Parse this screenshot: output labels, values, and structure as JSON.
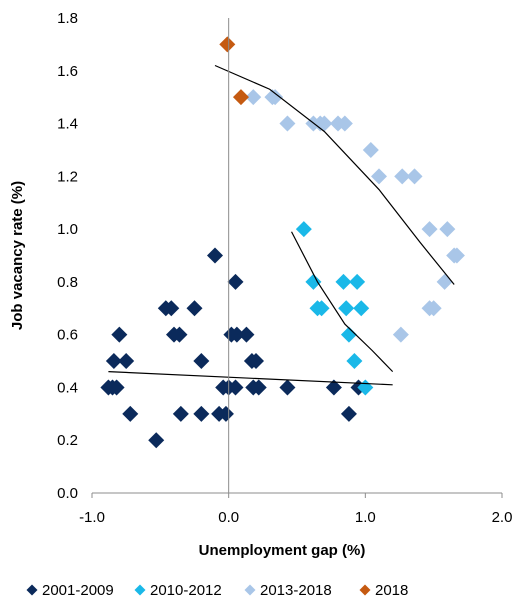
{
  "chart_data": {
    "type": "scatter",
    "xlabel": "Unemployment gap (%)",
    "ylabel": "Job vacancy rate (%)",
    "xlim": [
      -1.0,
      2.0
    ],
    "ylim": [
      0.0,
      1.8
    ],
    "x_ticks": [
      "-1.0",
      "0.0",
      "1.0",
      "2.0"
    ],
    "y_ticks": [
      "0.0",
      "0.2",
      "0.4",
      "0.6",
      "0.8",
      "1.0",
      "1.2",
      "1.4",
      "1.6",
      "1.8"
    ],
    "grid": false,
    "legend_position": "bottom",
    "marker": "diamond",
    "series": [
      {
        "name": "2001-2009",
        "color": "#0b2a5b",
        "points": [
          [
            -0.88,
            0.4
          ],
          [
            -0.85,
            0.4
          ],
          [
            -0.82,
            0.4
          ],
          [
            -0.84,
            0.5
          ],
          [
            -0.8,
            0.6
          ],
          [
            -0.75,
            0.5
          ],
          [
            -0.72,
            0.3
          ],
          [
            -0.53,
            0.2
          ],
          [
            -0.46,
            0.7
          ],
          [
            -0.42,
            0.7
          ],
          [
            -0.4,
            0.6
          ],
          [
            -0.36,
            0.6
          ],
          [
            -0.35,
            0.3
          ],
          [
            -0.25,
            0.7
          ],
          [
            -0.2,
            0.3
          ],
          [
            -0.2,
            0.5
          ],
          [
            -0.1,
            0.9
          ],
          [
            -0.07,
            0.3
          ],
          [
            -0.02,
            0.3
          ],
          [
            -0.04,
            0.4
          ],
          [
            0.0,
            0.4
          ],
          [
            0.02,
            0.6
          ],
          [
            0.05,
            0.8
          ],
          [
            0.06,
            0.6
          ],
          [
            0.05,
            0.4
          ],
          [
            0.13,
            0.6
          ],
          [
            0.17,
            0.5
          ],
          [
            0.2,
            0.5
          ],
          [
            0.18,
            0.4
          ],
          [
            0.22,
            0.4
          ],
          [
            0.43,
            0.4
          ],
          [
            0.77,
            0.4
          ],
          [
            0.88,
            0.3
          ],
          [
            0.95,
            0.4
          ]
        ]
      },
      {
        "name": "2010-2012",
        "color": "#1ab8e8",
        "points": [
          [
            0.55,
            1.0
          ],
          [
            0.62,
            0.8
          ],
          [
            0.65,
            0.7
          ],
          [
            0.68,
            0.7
          ],
          [
            0.84,
            0.8
          ],
          [
            0.86,
            0.7
          ],
          [
            0.88,
            0.6
          ],
          [
            0.92,
            0.5
          ],
          [
            0.94,
            0.8
          ],
          [
            0.97,
            0.7
          ],
          [
            1.0,
            0.4
          ]
        ]
      },
      {
        "name": "2013-2018",
        "color": "#a9c6e8",
        "points": [
          [
            0.18,
            1.5
          ],
          [
            0.32,
            1.5
          ],
          [
            0.34,
            1.5
          ],
          [
            0.43,
            1.4
          ],
          [
            0.62,
            1.4
          ],
          [
            0.67,
            1.4
          ],
          [
            0.7,
            1.4
          ],
          [
            0.8,
            1.4
          ],
          [
            0.85,
            1.4
          ],
          [
            1.04,
            1.3
          ],
          [
            1.1,
            1.2
          ],
          [
            1.27,
            1.2
          ],
          [
            1.36,
            1.2
          ],
          [
            1.26,
            0.6
          ],
          [
            1.47,
            1.0
          ],
          [
            1.47,
            0.7
          ],
          [
            1.5,
            0.7
          ],
          [
            1.58,
            0.8
          ],
          [
            1.6,
            1.0
          ],
          [
            1.65,
            0.9
          ],
          [
            1.67,
            0.9
          ]
        ]
      },
      {
        "name": "2018",
        "color": "#c55a11",
        "points": [
          [
            -0.01,
            1.7
          ],
          [
            0.09,
            1.5
          ]
        ]
      }
    ],
    "trendlines": [
      {
        "points": [
          [
            -0.1,
            1.62
          ],
          [
            0.3,
            1.53
          ],
          [
            0.7,
            1.37
          ],
          [
            1.1,
            1.15
          ],
          [
            1.4,
            0.95
          ],
          [
            1.65,
            0.79
          ]
        ]
      },
      {
        "points": [
          [
            0.46,
            0.99
          ],
          [
            0.65,
            0.8
          ],
          [
            0.85,
            0.64
          ],
          [
            1.05,
            0.54
          ],
          [
            1.2,
            0.46
          ]
        ]
      },
      {
        "points": [
          [
            -0.88,
            0.46
          ],
          [
            1.2,
            0.41
          ]
        ]
      }
    ]
  }
}
